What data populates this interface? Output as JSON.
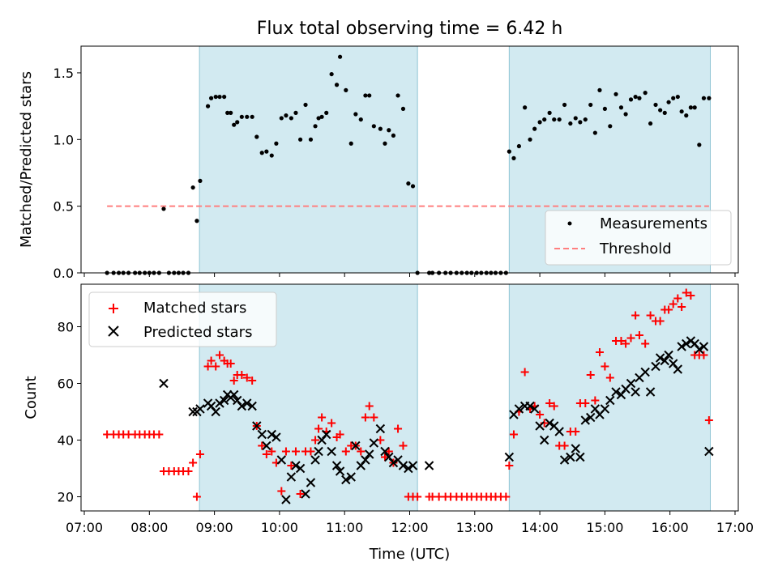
{
  "chart_data": [
    {
      "type": "scatter",
      "title": "Flux total observing time = 6.42 h",
      "xlabel": "",
      "ylabel": "Matched/Predicted stars",
      "xlim": [
        6.95,
        17.05
      ],
      "ylim": [
        0,
        1.7
      ],
      "yticks": [
        0.0,
        0.5,
        1.0,
        1.5
      ],
      "ytick_labels": [
        "0.0",
        "0.5",
        "1.0",
        "1.5"
      ],
      "shaded_regions": [
        [
          8.77,
          12.12
        ],
        [
          13.53,
          16.62
        ]
      ],
      "shade_color": "#add8e6",
      "threshold": {
        "label": "Threshold",
        "value": 0.5,
        "x_start": 7.35,
        "x_end": 16.6,
        "color": "#ff7f7f"
      },
      "legend": {
        "position": "lower-right",
        "entries": [
          "Measurements",
          "Threshold"
        ]
      },
      "series": [
        {
          "name": "Measurements",
          "marker": "dot",
          "color": "#000000",
          "x": [
            7.35,
            7.45,
            7.53,
            7.6,
            7.68,
            7.78,
            7.85,
            7.93,
            8.0,
            8.07,
            8.15,
            8.22,
            8.3,
            8.38,
            8.45,
            8.52,
            8.6,
            8.67,
            8.73,
            8.78,
            8.9,
            8.95,
            9.02,
            9.08,
            9.15,
            9.2,
            9.25,
            9.3,
            9.35,
            9.42,
            9.5,
            9.58,
            9.65,
            9.73,
            9.8,
            9.88,
            9.95,
            10.03,
            10.1,
            10.18,
            10.25,
            10.32,
            10.4,
            10.48,
            10.55,
            10.6,
            10.65,
            10.72,
            10.8,
            10.88,
            10.93,
            11.02,
            11.1,
            11.17,
            11.25,
            11.32,
            11.38,
            11.45,
            11.55,
            11.62,
            11.68,
            11.75,
            11.82,
            11.9,
            11.98,
            12.05,
            12.12,
            12.3,
            12.35,
            12.45,
            12.55,
            12.63,
            12.72,
            12.8,
            12.88,
            12.95,
            13.03,
            13.1,
            13.18,
            13.25,
            13.32,
            13.4,
            13.48,
            13.53,
            13.6,
            13.68,
            13.77,
            13.85,
            13.92,
            14.0,
            14.07,
            14.15,
            14.22,
            14.3,
            14.38,
            14.47,
            14.55,
            14.62,
            14.7,
            14.78,
            14.85,
            14.92,
            15.0,
            15.08,
            15.17,
            15.25,
            15.32,
            15.4,
            15.47,
            15.53,
            15.62,
            15.7,
            15.78,
            15.85,
            15.92,
            15.98,
            16.05,
            16.12,
            16.18,
            16.25,
            16.32,
            16.38,
            16.45,
            16.52,
            16.6
          ],
          "y": [
            0.0,
            0.0,
            0.0,
            0.0,
            0.0,
            0.0,
            0.0,
            0.0,
            0.0,
            0.0,
            0.0,
            0.48,
            0.0,
            0.0,
            0.0,
            0.0,
            0.0,
            0.64,
            0.39,
            0.69,
            1.25,
            1.31,
            1.32,
            1.32,
            1.32,
            1.2,
            1.2,
            1.11,
            1.13,
            1.17,
            1.17,
            1.17,
            1.02,
            0.9,
            0.91,
            0.88,
            0.97,
            1.16,
            1.18,
            1.16,
            1.2,
            1.0,
            1.26,
            1.0,
            1.1,
            1.16,
            1.17,
            1.2,
            1.49,
            1.41,
            1.62,
            1.37,
            0.97,
            1.19,
            1.15,
            1.33,
            1.33,
            1.1,
            1.08,
            0.97,
            1.07,
            1.03,
            1.33,
            1.23,
            0.67,
            0.65,
            0.0,
            0.0,
            0.0,
            0.0,
            0.0,
            0.0,
            0.0,
            0.0,
            0.0,
            0.0,
            0.0,
            0.0,
            0.0,
            0.0,
            0.0,
            0.0,
            0.0,
            0.91,
            0.86,
            0.95,
            1.24,
            1.0,
            1.08,
            1.13,
            1.15,
            1.2,
            1.15,
            1.15,
            1.26,
            1.12,
            1.16,
            1.13,
            1.15,
            1.26,
            1.05,
            1.37,
            1.23,
            1.1,
            1.34,
            1.24,
            1.19,
            1.3,
            1.32,
            1.31,
            1.35,
            1.12,
            1.26,
            1.22,
            1.2,
            1.28,
            1.31,
            1.32,
            1.21,
            1.18,
            1.24,
            1.24,
            0.96,
            1.31,
            1.31
          ]
        }
      ]
    },
    {
      "type": "scatter",
      "title": "",
      "xlabel": "Time (UTC)",
      "ylabel": "Count",
      "xlim": [
        6.95,
        17.05
      ],
      "ylim": [
        15,
        95
      ],
      "yticks": [
        20,
        40,
        60,
        80
      ],
      "ytick_labels": [
        "20",
        "40",
        "60",
        "80"
      ],
      "xticks": [
        7,
        8,
        9,
        10,
        11,
        12,
        13,
        14,
        15,
        16,
        17
      ],
      "xtick_labels": [
        "07:00",
        "08:00",
        "09:00",
        "10:00",
        "11:00",
        "12:00",
        "13:00",
        "14:00",
        "15:00",
        "16:00",
        "17:00"
      ],
      "shaded_regions": [
        [
          8.77,
          12.12
        ],
        [
          13.53,
          16.62
        ]
      ],
      "shade_color": "#add8e6",
      "legend": {
        "position": "top-left",
        "entries": [
          "Matched stars",
          "Predicted stars"
        ]
      },
      "series": [
        {
          "name": "Matched stars",
          "marker": "plus",
          "color": "#ff0000",
          "x": [
            7.35,
            7.45,
            7.53,
            7.6,
            7.68,
            7.78,
            7.85,
            7.93,
            8.0,
            8.07,
            8.15,
            8.22,
            8.3,
            8.38,
            8.45,
            8.52,
            8.6,
            8.67,
            8.73,
            8.78,
            8.9,
            8.95,
            9.02,
            9.08,
            9.15,
            9.2,
            9.25,
            9.3,
            9.35,
            9.42,
            9.5,
            9.58,
            9.65,
            9.73,
            9.8,
            9.88,
            9.95,
            10.03,
            10.1,
            10.18,
            10.25,
            10.32,
            10.4,
            10.48,
            10.55,
            10.6,
            10.65,
            10.72,
            10.8,
            10.88,
            10.93,
            11.02,
            11.1,
            11.17,
            11.25,
            11.32,
            11.38,
            11.45,
            11.55,
            11.62,
            11.68,
            11.75,
            11.82,
            11.9,
            11.98,
            12.05,
            12.12,
            12.3,
            12.35,
            12.45,
            12.55,
            12.63,
            12.72,
            12.8,
            12.88,
            12.95,
            13.03,
            13.1,
            13.18,
            13.25,
            13.32,
            13.4,
            13.48,
            13.53,
            13.6,
            13.68,
            13.77,
            13.85,
            13.92,
            14.0,
            14.07,
            14.15,
            14.22,
            14.3,
            14.38,
            14.47,
            14.55,
            14.62,
            14.7,
            14.78,
            14.85,
            14.92,
            15.0,
            15.08,
            15.17,
            15.25,
            15.32,
            15.4,
            15.47,
            15.53,
            15.62,
            15.7,
            15.78,
            15.85,
            15.92,
            15.98,
            16.05,
            16.12,
            16.18,
            16.25,
            16.32,
            16.38,
            16.45,
            16.52,
            16.6
          ],
          "y": [
            42,
            42,
            42,
            42,
            42,
            42,
            42,
            42,
            42,
            42,
            42,
            29,
            29,
            29,
            29,
            29,
            29,
            32,
            20,
            35,
            66,
            68,
            66,
            70,
            68,
            67,
            67,
            61,
            63,
            63,
            62,
            61,
            45,
            38,
            35,
            36,
            32,
            22,
            36,
            31,
            36,
            21,
            36,
            36,
            40,
            44,
            48,
            43,
            46,
            41,
            42,
            36,
            38,
            38,
            36,
            48,
            52,
            48,
            40,
            34,
            36,
            32,
            44,
            38,
            20,
            20,
            20,
            20,
            20,
            20,
            20,
            20,
            20,
            20,
            20,
            20,
            20,
            20,
            20,
            20,
            20,
            20,
            20,
            31,
            42,
            50,
            64,
            51,
            52,
            49,
            46,
            53,
            52,
            38,
            38,
            43,
            43,
            53,
            53,
            63,
            54,
            71,
            66,
            62,
            75,
            75,
            74,
            76,
            84,
            77,
            74,
            84,
            82,
            82,
            86,
            86,
            88,
            90,
            87,
            92,
            91,
            70,
            70,
            70,
            47
          ]
        },
        {
          "name": "Predicted stars",
          "marker": "x",
          "color": "#000000",
          "x": [
            8.22,
            8.67,
            8.73,
            8.78,
            8.9,
            8.95,
            9.02,
            9.08,
            9.15,
            9.2,
            9.25,
            9.3,
            9.35,
            9.42,
            9.5,
            9.58,
            9.65,
            9.73,
            9.8,
            9.88,
            9.95,
            10.03,
            10.1,
            10.18,
            10.25,
            10.32,
            10.4,
            10.48,
            10.55,
            10.6,
            10.65,
            10.72,
            10.8,
            10.88,
            10.93,
            11.02,
            11.1,
            11.17,
            11.25,
            11.32,
            11.38,
            11.45,
            11.55,
            11.62,
            11.68,
            11.75,
            11.82,
            11.9,
            11.98,
            12.05,
            12.3,
            13.53,
            13.6,
            13.68,
            13.77,
            13.85,
            13.92,
            14.0,
            14.07,
            14.15,
            14.22,
            14.3,
            14.38,
            14.47,
            14.55,
            14.62,
            14.7,
            14.78,
            14.85,
            14.92,
            15.0,
            15.08,
            15.17,
            15.25,
            15.32,
            15.4,
            15.47,
            15.53,
            15.62,
            15.7,
            15.78,
            15.85,
            15.92,
            15.98,
            16.05,
            16.12,
            16.18,
            16.25,
            16.32,
            16.38,
            16.45,
            16.52,
            16.6
          ],
          "y": [
            60,
            50,
            50,
            51,
            53,
            52,
            50,
            53,
            54,
            56,
            55,
            56,
            54,
            52,
            53,
            52,
            45,
            42,
            38,
            42,
            41,
            33,
            19,
            27,
            31,
            30,
            21,
            25,
            33,
            36,
            40,
            42,
            36,
            31,
            29,
            26,
            27,
            38,
            31,
            33,
            35,
            39,
            44,
            36,
            34,
            32,
            33,
            31,
            30,
            31,
            31,
            34,
            49,
            51,
            52,
            52,
            51,
            45,
            40,
            46,
            45,
            43,
            33,
            34,
            37,
            34,
            47,
            48,
            51,
            49,
            51,
            54,
            57,
            56,
            58,
            60,
            57,
            62,
            64,
            57,
            66,
            69,
            68,
            70,
            67,
            65,
            73,
            74,
            75,
            74,
            72,
            73,
            36
          ]
        }
      ]
    }
  ]
}
